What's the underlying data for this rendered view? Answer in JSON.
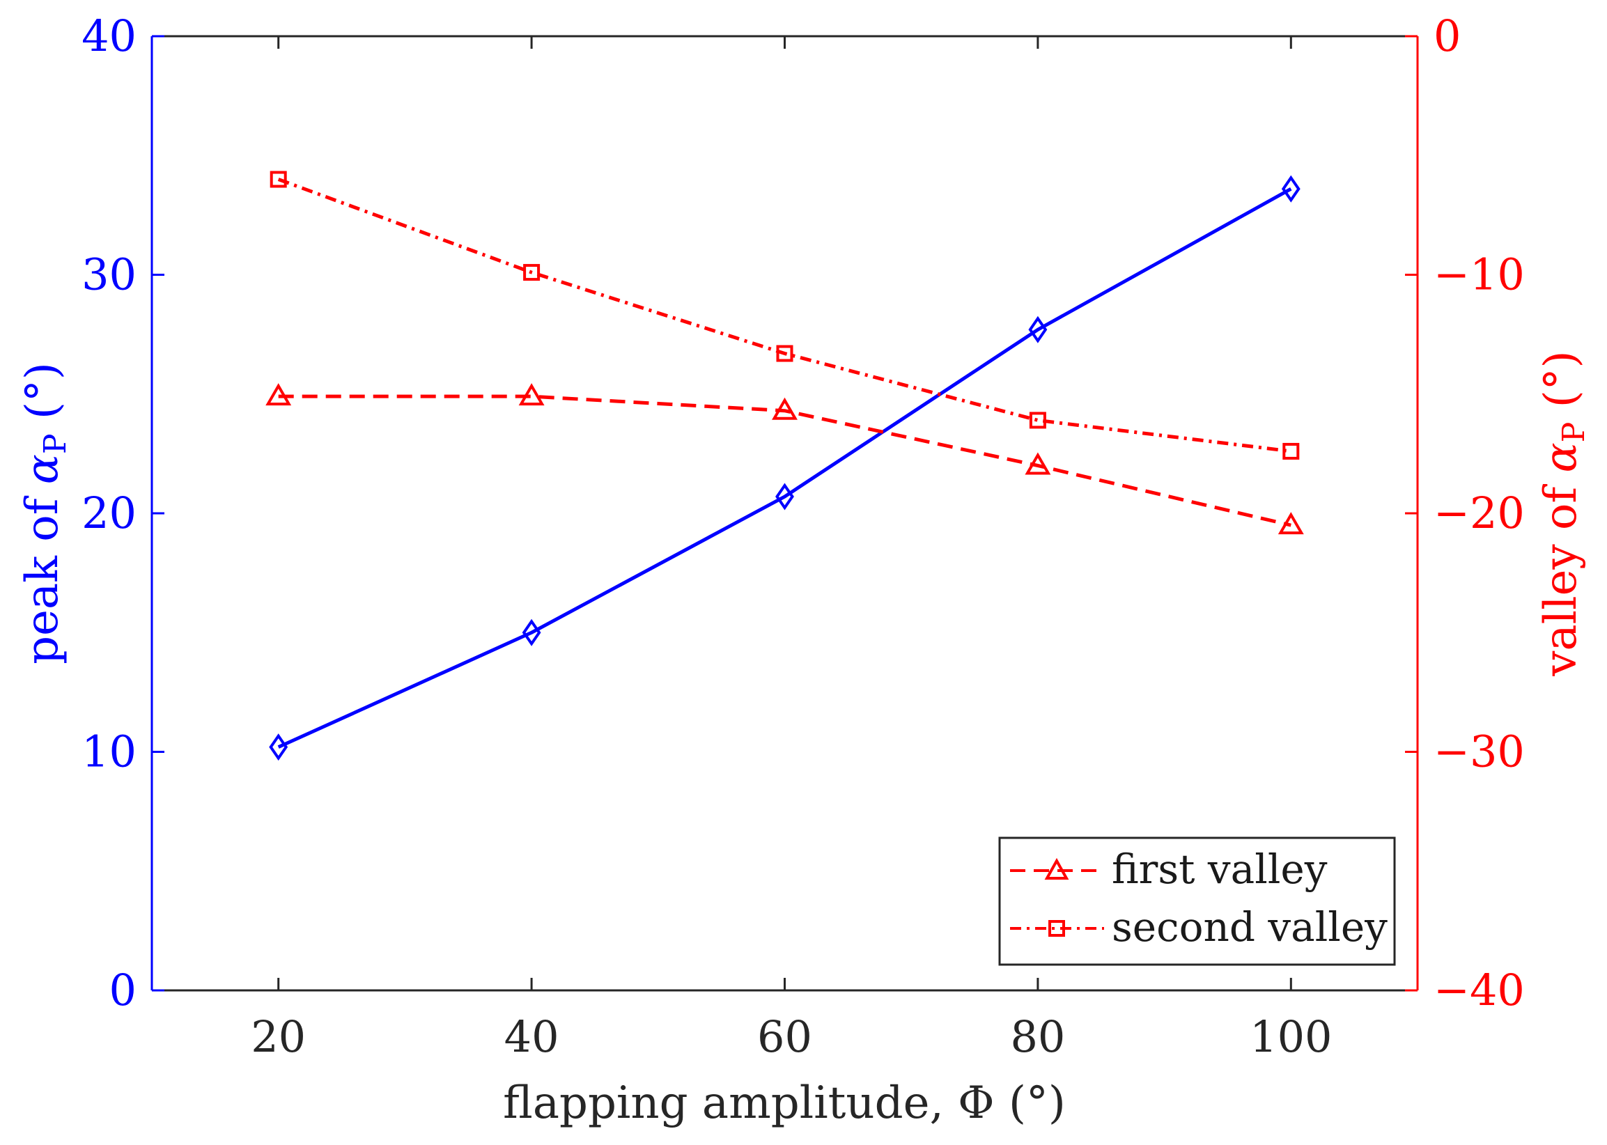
{
  "chart_data": {
    "type": "line",
    "xlabel": "flapping amplitude, Φ (°)",
    "ylabel_left": {
      "main": "peak of ",
      "symbol": "α",
      "sub": "P",
      "unit": " (°)"
    },
    "ylabel_right": {
      "main": "valley of ",
      "symbol": "α",
      "sub": "P",
      "unit": " (°)"
    },
    "xlim": [
      10,
      110
    ],
    "ylim_left": [
      0,
      40
    ],
    "ylim_right": [
      -40,
      0
    ],
    "x_ticks": [
      20,
      40,
      60,
      80,
      100
    ],
    "x_tick_labels": [
      "20",
      "40",
      "60",
      "80",
      "100"
    ],
    "y_left_ticks": [
      0,
      10,
      20,
      30,
      40
    ],
    "y_left_tick_labels": [
      "0",
      "10",
      "20",
      "30",
      "40"
    ],
    "y_right_ticks": [
      -40,
      -30,
      -20,
      -10,
      0
    ],
    "y_right_tick_labels": [
      "−40",
      "−30",
      "−20",
      "−10",
      "0"
    ],
    "grid": false,
    "legend_position": "bottom-right",
    "series": [
      {
        "name": "peak",
        "axis": "left",
        "color": "#0000ff",
        "marker": "diamond",
        "line_style": "solid",
        "x": [
          20,
          40,
          60,
          80,
          100
        ],
        "y": [
          10.2,
          15.0,
          20.7,
          27.7,
          33.6
        ]
      },
      {
        "name": "first valley",
        "axis": "right",
        "color": "#ff0000",
        "marker": "triangle",
        "line_style": "dashed",
        "x": [
          20,
          40,
          60,
          80,
          100
        ],
        "y": [
          -15.1,
          -15.1,
          -15.7,
          -18.0,
          -20.5
        ]
      },
      {
        "name": "second valley",
        "axis": "right",
        "color": "#ff0000",
        "marker": "square",
        "line_style": "dashdot",
        "x": [
          20,
          40,
          60,
          80,
          100
        ],
        "y": [
          -6.0,
          -9.9,
          -13.3,
          -16.1,
          -17.4
        ]
      }
    ],
    "legend": [
      {
        "label": "first valley",
        "series": 1
      },
      {
        "label": "second valley",
        "series": 2
      }
    ],
    "colors": {
      "left_axis": "#0000ff",
      "right_axis": "#ff0000",
      "frame": "#262626",
      "text": "#262626"
    }
  }
}
